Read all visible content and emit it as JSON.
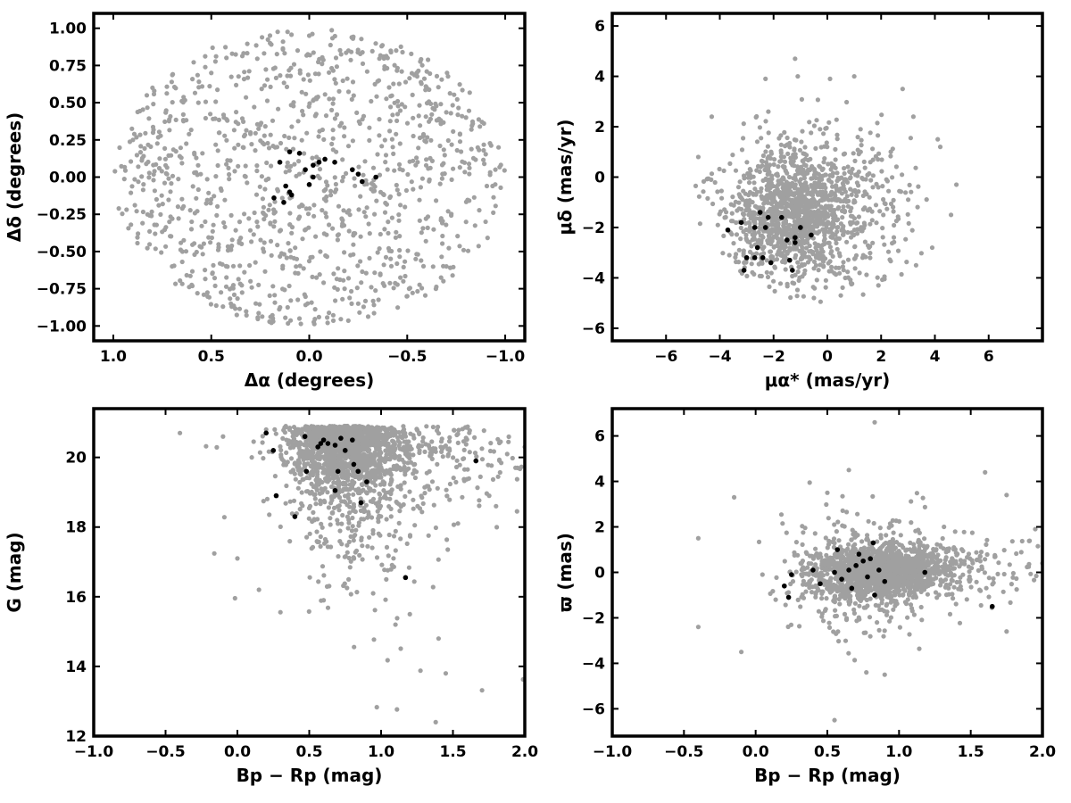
{
  "chart_data": [
    {
      "type": "scatter",
      "panel": "top-left",
      "xlabel": "Δα (degrees)",
      "ylabel": "Δδ (degrees)",
      "xlim": [
        1.1,
        -1.1
      ],
      "ylim": [
        -1.1,
        1.1
      ],
      "xticks": [
        "1.0",
        "0.5",
        "0.0",
        "−0.5",
        "−1.0"
      ],
      "yticks": [
        "1.00",
        "0.75",
        "0.50",
        "0.25",
        "0.00",
        "−0.25",
        "−0.50",
        "−0.75",
        "−1.00"
      ],
      "background_shape": "disk radius 1.0 centered at (0,0)",
      "series": [
        {
          "color": "#a0a0a0",
          "points": [
            [
              0.9,
              0.25
            ],
            [
              0.8,
              0.6
            ],
            [
              0.7,
              -0.6
            ],
            [
              0.5,
              0.7
            ],
            [
              0.4,
              -0.85
            ],
            [
              0.2,
              0.9
            ],
            [
              0.0,
              0.95
            ],
            [
              -0.2,
              0.85
            ],
            [
              -0.4,
              0.8
            ],
            [
              -0.6,
              0.6
            ],
            [
              -0.8,
              0.4
            ],
            [
              -0.95,
              0.05
            ],
            [
              -0.9,
              -0.3
            ],
            [
              -0.7,
              -0.6
            ],
            [
              -0.5,
              -0.8
            ],
            [
              -0.25,
              -0.85
            ],
            [
              0.05,
              -0.95
            ],
            [
              0.3,
              -0.7
            ],
            [
              0.6,
              -0.3
            ],
            [
              0.3,
              0.3
            ]
          ]
        },
        {
          "color": "#000000",
          "points": [
            [
              0.15,
              0.1
            ],
            [
              0.1,
              0.17
            ],
            [
              0.05,
              0.16
            ],
            [
              0.02,
              0.05
            ],
            [
              -0.02,
              0.08
            ],
            [
              -0.05,
              0.1
            ],
            [
              -0.08,
              0.12
            ],
            [
              -0.13,
              0.1
            ],
            [
              -0.22,
              0.05
            ],
            [
              -0.25,
              0.02
            ],
            [
              -0.27,
              -0.03
            ],
            [
              -0.34,
              0.0
            ],
            [
              0.12,
              -0.06
            ],
            [
              0.1,
              -0.1
            ],
            [
              0.09,
              -0.12
            ],
            [
              0.13,
              -0.17
            ],
            [
              0.18,
              -0.14
            ],
            [
              0.0,
              -0.05
            ],
            [
              -0.02,
              0.0
            ]
          ]
        }
      ]
    },
    {
      "type": "scatter",
      "panel": "top-right",
      "xlabel": "μα* (mas/yr)",
      "ylabel": "μδ (mas/yr)",
      "xlim": [
        -8,
        8
      ],
      "ylim": [
        -6.5,
        6.5
      ],
      "xticks": [
        "−6",
        "−4",
        "−2",
        "0",
        "2",
        "4",
        "6"
      ],
      "yticks": [
        "6",
        "4",
        "2",
        "0",
        "−2",
        "−4",
        "−6"
      ],
      "series": [
        {
          "color": "#a0a0a0",
          "points": [
            [
              -1.2,
              4.7
            ],
            [
              -1.1,
              4.0
            ],
            [
              0.1,
              3.9
            ],
            [
              1.0,
              4.0
            ],
            [
              2.8,
              3.5
            ],
            [
              -2.3,
              3.9
            ],
            [
              -4.3,
              2.4
            ],
            [
              3.2,
              2.4
            ],
            [
              4.2,
              1.2
            ],
            [
              4.8,
              -0.3
            ],
            [
              4.6,
              -1.5
            ],
            [
              3.9,
              -2.8
            ],
            [
              3.3,
              -3.5
            ],
            [
              -4.8,
              0.8
            ],
            [
              -3.6,
              -2.2
            ],
            [
              -0.5,
              -4.8
            ],
            [
              0.5,
              -4.7
            ],
            [
              1.9,
              -4.3
            ]
          ]
        },
        {
          "color": "#000000",
          "points": [
            [
              -3.7,
              -2.1
            ],
            [
              -3.2,
              -1.8
            ],
            [
              -3.0,
              -3.2
            ],
            [
              -3.1,
              -3.7
            ],
            [
              -2.7,
              -2.0
            ],
            [
              -2.7,
              -3.2
            ],
            [
              -2.6,
              -2.8
            ],
            [
              -2.5,
              -1.4
            ],
            [
              -2.4,
              -3.2
            ],
            [
              -2.3,
              -2.0
            ],
            [
              -2.2,
              -1.6
            ],
            [
              -2.1,
              -3.4
            ],
            [
              -1.7,
              -1.6
            ],
            [
              -1.5,
              -2.5
            ],
            [
              -1.4,
              -3.3
            ],
            [
              -1.3,
              -3.7
            ],
            [
              -1.2,
              -2.4
            ],
            [
              -1.2,
              -2.6
            ],
            [
              -1.0,
              -2.0
            ],
            [
              -0.6,
              -2.3
            ]
          ]
        }
      ]
    },
    {
      "type": "scatter",
      "panel": "bottom-left",
      "xlabel": "Bp − Rp (mag)",
      "ylabel": "G (mag)",
      "xlim": [
        -1.0,
        2.0
      ],
      "ylim": [
        12,
        21.4
      ],
      "xticks": [
        "−1.0",
        "−0.5",
        "0.0",
        "0.5",
        "1.0",
        "1.5",
        "2.0"
      ],
      "yticks": [
        "12",
        "14",
        "16",
        "18",
        "20"
      ],
      "series": [
        {
          "color": "#a0a0a0",
          "points": [
            [
              -0.4,
              20.7
            ],
            [
              -0.1,
              20.6
            ],
            [
              0.0,
              17.1
            ],
            [
              0.1,
              20.0
            ],
            [
              0.15,
              16.2
            ],
            [
              0.2,
              20.8
            ],
            [
              0.6,
              15.9
            ],
            [
              1.1,
              15.2
            ],
            [
              1.2,
              15.5
            ],
            [
              1.38,
              12.4
            ],
            [
              1.4,
              14.8
            ],
            [
              1.45,
              13.8
            ],
            [
              1.8,
              18.6
            ],
            [
              1.95,
              19.7
            ],
            [
              2.0,
              20.3
            ]
          ]
        },
        {
          "color": "#000000",
          "points": [
            [
              0.2,
              20.7
            ],
            [
              0.25,
              20.2
            ],
            [
              0.27,
              18.9
            ],
            [
              0.4,
              18.3
            ],
            [
              0.47,
              20.6
            ],
            [
              0.48,
              19.6
            ],
            [
              0.56,
              20.3
            ],
            [
              0.58,
              20.4
            ],
            [
              0.6,
              20.5
            ],
            [
              0.63,
              20.4
            ],
            [
              0.68,
              20.35
            ],
            [
              0.68,
              19.05
            ],
            [
              0.7,
              19.6
            ],
            [
              0.72,
              20.55
            ],
            [
              0.75,
              20.2
            ],
            [
              0.8,
              20.5
            ],
            [
              0.81,
              19.8
            ],
            [
              0.84,
              19.6
            ],
            [
              0.86,
              18.7
            ],
            [
              0.9,
              19.3
            ],
            [
              1.17,
              16.55
            ],
            [
              1.66,
              19.9
            ]
          ]
        }
      ]
    },
    {
      "type": "scatter",
      "panel": "bottom-right",
      "xlabel": "Bp − Rp (mag)",
      "ylabel": "ϖ (mas)",
      "xlim": [
        -1.0,
        2.0
      ],
      "ylim": [
        -7.2,
        7.2
      ],
      "xticks": [
        "−1.0",
        "−0.5",
        "0.0",
        "0.5",
        "1.0",
        "1.5",
        "2.0"
      ],
      "yticks": [
        "6",
        "4",
        "2",
        "0",
        "−2",
        "−4",
        "−6"
      ],
      "series": [
        {
          "color": "#a0a0a0",
          "points": [
            [
              -0.4,
              1.5
            ],
            [
              -0.4,
              -2.4
            ],
            [
              -0.15,
              3.3
            ],
            [
              -0.1,
              -3.5
            ],
            [
              0.5,
              3.5
            ],
            [
              0.55,
              -6.5
            ],
            [
              0.65,
              4.5
            ],
            [
              0.83,
              6.6
            ],
            [
              0.9,
              -4.5
            ],
            [
              1.6,
              4.4
            ],
            [
              1.75,
              3.4
            ],
            [
              1.75,
              -2.6
            ],
            [
              1.95,
              1.9
            ],
            [
              2.0,
              0.4
            ]
          ]
        },
        {
          "color": "#000000",
          "points": [
            [
              0.2,
              -0.6
            ],
            [
              0.23,
              -1.1
            ],
            [
              0.25,
              -0.1
            ],
            [
              0.4,
              0.1
            ],
            [
              0.45,
              -0.5
            ],
            [
              0.55,
              0.0
            ],
            [
              0.57,
              1.0
            ],
            [
              0.6,
              -0.3
            ],
            [
              0.65,
              0.1
            ],
            [
              0.67,
              -0.7
            ],
            [
              0.7,
              0.3
            ],
            [
              0.72,
              0.8
            ],
            [
              0.75,
              0.5
            ],
            [
              0.78,
              -0.2
            ],
            [
              0.8,
              0.6
            ],
            [
              0.82,
              1.3
            ],
            [
              0.83,
              -1.0
            ],
            [
              0.86,
              0.1
            ],
            [
              0.9,
              -0.4
            ],
            [
              1.18,
              0.0
            ],
            [
              1.65,
              -1.5
            ]
          ]
        }
      ]
    }
  ]
}
